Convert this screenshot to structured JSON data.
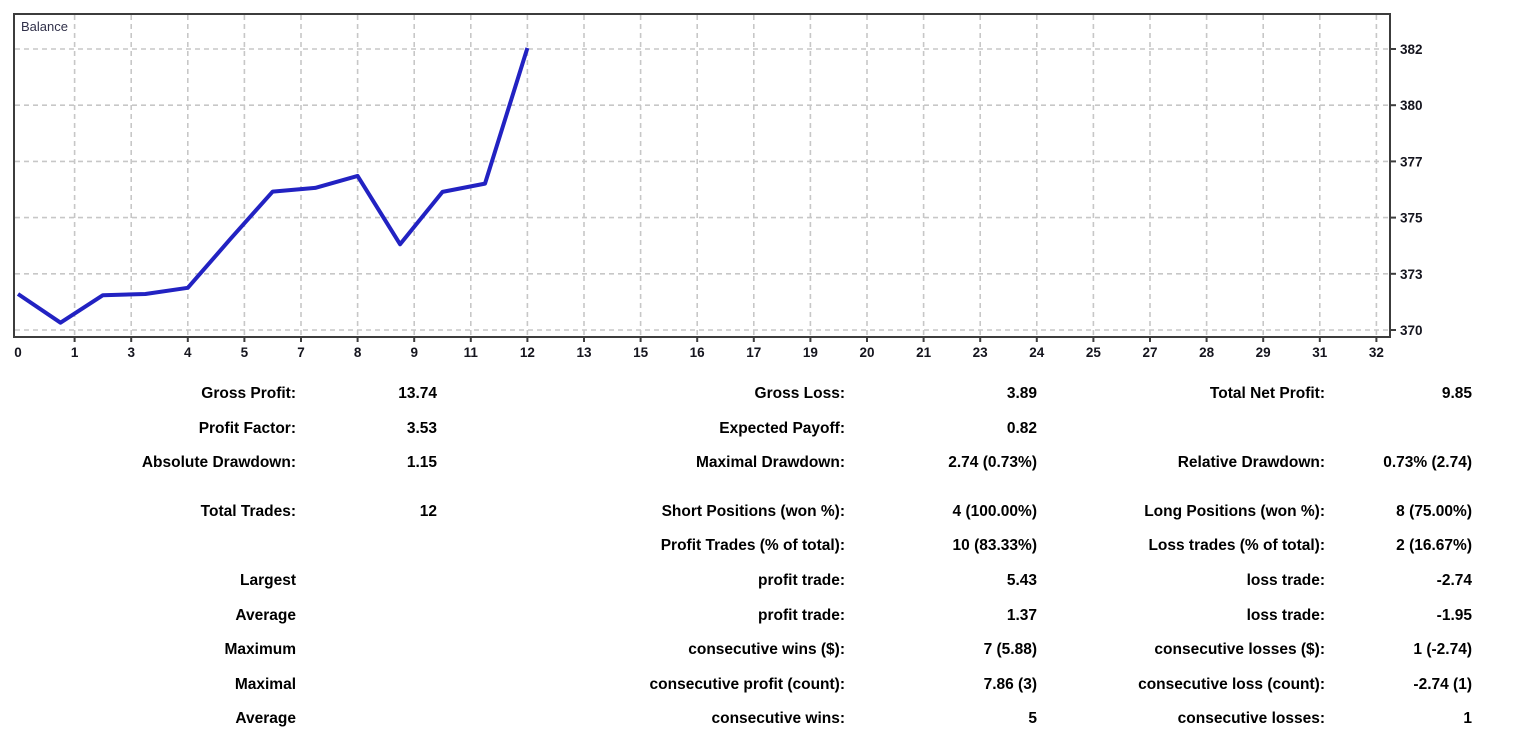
{
  "chart_data": {
    "type": "line",
    "title": "Balance",
    "series": [
      {
        "name": "Balance",
        "color": "#2222c2",
        "values": [
          372.15,
          371.0,
          372.1,
          372.15,
          372.4,
          374.35,
          376.25,
          376.4,
          376.88,
          374.14,
          376.24,
          376.57,
          382.0
        ]
      }
    ],
    "x": [
      0,
      1,
      2,
      3,
      4,
      5,
      6,
      7,
      8,
      9,
      10,
      11,
      12
    ],
    "x_ticks": [
      0,
      1,
      3,
      4,
      5,
      7,
      8,
      9,
      11,
      12,
      13,
      15,
      16,
      17,
      19,
      20,
      21,
      23,
      24,
      25,
      27,
      28,
      29,
      31,
      32
    ],
    "y_ticks": [
      382,
      380,
      377,
      375,
      373,
      370
    ],
    "x_range": [
      0,
      32
    ],
    "y_range": [
      370,
      382.5
    ],
    "xlabel": "",
    "ylabel": "",
    "grid": "dashed",
    "grid_color": "#c7c7c7",
    "border_color": "#3c3c3c",
    "legend_position": "top-left-inside"
  },
  "stats": {
    "summary_rows": [
      {
        "c1": "Gross Profit:",
        "c2": "13.74",
        "c3": "Gross Loss:",
        "c4": "3.89",
        "c5": "Total Net Profit:",
        "c6": "9.85"
      },
      {
        "c1": "Profit Factor:",
        "c2": "3.53",
        "c3": "Expected Payoff:",
        "c4": "0.82",
        "c5": "",
        "c6": ""
      },
      {
        "c1": "Absolute Drawdown:",
        "c2": "1.15",
        "c3": "Maximal Drawdown:",
        "c4": "2.74 (0.73%)",
        "c5": "Relative Drawdown:",
        "c6": "0.73% (2.74)"
      }
    ],
    "trade_rows": [
      {
        "c1": "Total Trades:",
        "c2": "12",
        "c3": "Short Positions (won %):",
        "c4": "4 (100.00%)",
        "c5": "Long Positions (won %):",
        "c6": "8 (75.00%)"
      },
      {
        "c1": "",
        "c2": "",
        "c3": "Profit Trades (% of total):",
        "c4": "10 (83.33%)",
        "c5": "Loss trades (% of total):",
        "c6": "2 (16.67%)"
      },
      {
        "c1": "Largest",
        "c2": "",
        "c3": "profit trade:",
        "c4": "5.43",
        "c5": "loss trade:",
        "c6": "-2.74"
      },
      {
        "c1": "Average",
        "c2": "",
        "c3": "profit trade:",
        "c4": "1.37",
        "c5": "loss trade:",
        "c6": "-1.95"
      },
      {
        "c1": "Maximum",
        "c2": "",
        "c3": "consecutive wins ($):",
        "c4": "7 (5.88)",
        "c5": "consecutive losses ($):",
        "c6": "1 (-2.74)"
      },
      {
        "c1": "Maximal",
        "c2": "",
        "c3": "consecutive profit (count):",
        "c4": "7.86 (3)",
        "c5": "consecutive loss (count):",
        "c6": "-2.74 (1)"
      },
      {
        "c1": "Average",
        "c2": "",
        "c3": "consecutive wins:",
        "c4": "5",
        "c5": "consecutive losses:",
        "c6": "1"
      }
    ]
  }
}
